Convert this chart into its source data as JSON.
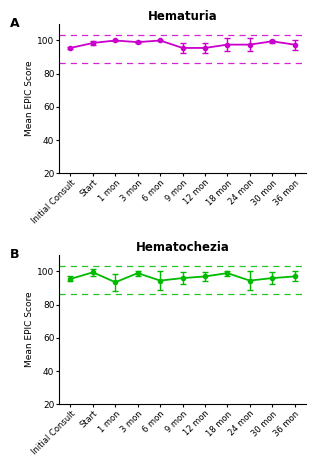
{
  "panel_A": {
    "title": "Hematuria",
    "label": "A",
    "color": "#CC00CC",
    "x_labels": [
      "Initial Consult",
      "Start",
      "1 mon",
      "3 mon",
      "6 mon",
      "9 mon",
      "12 mon",
      "18 mon",
      "24 mon",
      "30 mon",
      "36 mon"
    ],
    "y_values": [
      95.5,
      98.5,
      100.0,
      99.0,
      100.0,
      95.5,
      95.5,
      97.5,
      97.5,
      99.5,
      97.5
    ],
    "y_err": [
      0.8,
      1.2,
      0.5,
      0.8,
      0.5,
      3.0,
      3.0,
      4.0,
      4.0,
      1.0,
      3.0
    ],
    "hline_upper": 103.5,
    "hline_lower": 86.5,
    "ylim": [
      20,
      110
    ],
    "yticks": [
      20,
      40,
      60,
      80,
      100
    ]
  },
  "panel_B": {
    "title": "Hematochezia",
    "label": "B",
    "color": "#00BB00",
    "x_labels": [
      "Initial Consult",
      "Start",
      "1 mon",
      "3 mon",
      "6 mon",
      "9 mon",
      "12 mon",
      "18 mon",
      "24 mon",
      "30 mon",
      "36 mon"
    ],
    "y_values": [
      95.5,
      99.5,
      93.5,
      99.0,
      94.5,
      96.0,
      97.0,
      99.0,
      94.5,
      96.0,
      97.0
    ],
    "y_err": [
      1.5,
      2.0,
      5.0,
      1.5,
      5.5,
      3.5,
      2.5,
      1.5,
      5.5,
      3.5,
      3.0
    ],
    "hline_upper": 103.5,
    "hline_lower": 86.5,
    "ylim": [
      20,
      110
    ],
    "yticks": [
      20,
      40,
      60,
      80,
      100
    ]
  },
  "ylabel": "Mean EPIC Score",
  "fig_bg": "#ffffff",
  "spine_color": "#000000"
}
